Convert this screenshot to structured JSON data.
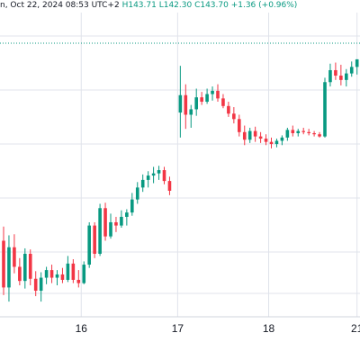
{
  "header": {
    "date_text": "n, Oct 22, 2024 08:53 UTC+2",
    "ohlc_text": "H143.71 L142.30 C143.70 +1.36 (+0.96%)"
  },
  "colors": {
    "up": "#089981",
    "down": "#f23645",
    "grid": "#e0e3eb",
    "axis_text": "#131722",
    "last_price_line": "#089981"
  },
  "chart_data": {
    "type": "candlestick",
    "x_tick_labels": [
      "16",
      "17",
      "18",
      "21"
    ],
    "last_price": 143.7,
    "ylim": [
      120,
      148
    ],
    "candles": [
      [
        127.0,
        128.3,
        122.0,
        122.7
      ],
      [
        122.7,
        127.5,
        121.4,
        126.4
      ],
      [
        126.4,
        127.6,
        124.0,
        124.6
      ],
      [
        124.6,
        125.4,
        122.9,
        123.3
      ],
      [
        123.3,
        126.3,
        122.6,
        125.8
      ],
      [
        125.8,
        126.2,
        122.9,
        123.5
      ],
      [
        123.5,
        124.2,
        121.9,
        122.4
      ],
      [
        122.4,
        124.1,
        121.4,
        123.6
      ],
      [
        123.6,
        124.6,
        123.0,
        124.3
      ],
      [
        124.3,
        124.8,
        123.1,
        123.6
      ],
      [
        123.6,
        124.3,
        122.9,
        123.9
      ],
      [
        123.9,
        124.5,
        123.1,
        123.4
      ],
      [
        123.4,
        125.6,
        123.2,
        124.9
      ],
      [
        124.9,
        125.3,
        123.1,
        123.4
      ],
      [
        123.4,
        124.3,
        122.7,
        123.1
      ],
      [
        123.1,
        125.1,
        123.0,
        124.8
      ],
      [
        124.8,
        128.7,
        124.5,
        128.4
      ],
      [
        128.4,
        128.7,
        125.4,
        125.8
      ],
      [
        125.8,
        130.4,
        125.6,
        130.0
      ],
      [
        130.0,
        130.5,
        127.0,
        127.4
      ],
      [
        127.4,
        129.5,
        127.2,
        128.7
      ],
      [
        128.7,
        129.2,
        127.8,
        128.4
      ],
      [
        128.4,
        129.8,
        128.2,
        129.2
      ],
      [
        129.2,
        129.9,
        128.4,
        129.6
      ],
      [
        129.6,
        131.4,
        129.3,
        130.8
      ],
      [
        130.8,
        132.4,
        130.4,
        131.9
      ],
      [
        131.9,
        133.1,
        131.5,
        132.6
      ],
      [
        132.6,
        133.4,
        131.9,
        133.0
      ],
      [
        133.0,
        133.8,
        132.3,
        133.2
      ],
      [
        133.2,
        133.9,
        132.6,
        133.5
      ],
      [
        133.5,
        133.8,
        132.2,
        132.5
      ],
      [
        132.5,
        132.9,
        131.2,
        131.6
      ],
      [
        138.8,
        143.1,
        136.5,
        140.4
      ],
      [
        140.4,
        141.4,
        137.3,
        138.6
      ],
      [
        138.6,
        139.5,
        137.4,
        139.1
      ],
      [
        139.1,
        141.0,
        138.5,
        140.2
      ],
      [
        140.2,
        140.7,
        139.5,
        139.8
      ],
      [
        139.8,
        141.0,
        139.6,
        140.5
      ],
      [
        140.5,
        141.2,
        139.9,
        140.8
      ],
      [
        140.8,
        141.4,
        139.8,
        140.1
      ],
      [
        140.1,
        140.5,
        139.2,
        139.4
      ],
      [
        139.4,
        139.8,
        138.4,
        138.7
      ],
      [
        138.7,
        139.3,
        137.8,
        138.2
      ],
      [
        138.2,
        138.6,
        136.6,
        137.0
      ],
      [
        137.0,
        137.6,
        135.8,
        136.3
      ],
      [
        136.3,
        137.4,
        136.0,
        137.1
      ],
      [
        137.1,
        137.5,
        136.1,
        136.6
      ],
      [
        136.6,
        137.0,
        136.0,
        136.4
      ],
      [
        136.4,
        136.8,
        135.8,
        136.1
      ],
      [
        136.1,
        136.5,
        135.5,
        135.9
      ],
      [
        135.9,
        136.4,
        135.6,
        136.2
      ],
      [
        136.2,
        136.7,
        135.8,
        136.5
      ],
      [
        136.5,
        137.4,
        136.2,
        137.2
      ],
      [
        137.2,
        137.6,
        136.6,
        136.9
      ],
      [
        136.9,
        137.3,
        136.6,
        137.1
      ],
      [
        137.1,
        137.4,
        136.8,
        137.0
      ],
      [
        137.0,
        137.3,
        136.7,
        136.9
      ],
      [
        136.9,
        137.1,
        136.6,
        136.8
      ],
      [
        136.8,
        137.0,
        136.5,
        136.6
      ],
      [
        136.6,
        142.0,
        136.5,
        141.6
      ],
      [
        141.6,
        143.3,
        141.2,
        142.7
      ],
      [
        142.7,
        143.4,
        141.8,
        142.2
      ],
      [
        142.2,
        143.2,
        141.3,
        141.8
      ],
      [
        141.8,
        142.8,
        141.2,
        142.4
      ],
      [
        142.4,
        143.5,
        142.1,
        143.0
      ],
      [
        143.0,
        143.7,
        142.3,
        143.7
      ]
    ],
    "slots": [
      0,
      1,
      2,
      3,
      4,
      5,
      6,
      7,
      8,
      9,
      10,
      11,
      12,
      13,
      14,
      15,
      16,
      17,
      18,
      19,
      20,
      21,
      22,
      23,
      24,
      25,
      26,
      27,
      28,
      29,
      30,
      31,
      33,
      34,
      35,
      36,
      37,
      38,
      39,
      40,
      41,
      42,
      43,
      44,
      45,
      46,
      47,
      48,
      49,
      50,
      51,
      52,
      53,
      54,
      55,
      56,
      57,
      58,
      59,
      60,
      61,
      62,
      63,
      64,
      65,
      66
    ],
    "tick_slots": [
      14.5,
      32.5,
      49.5,
      66.0
    ]
  }
}
